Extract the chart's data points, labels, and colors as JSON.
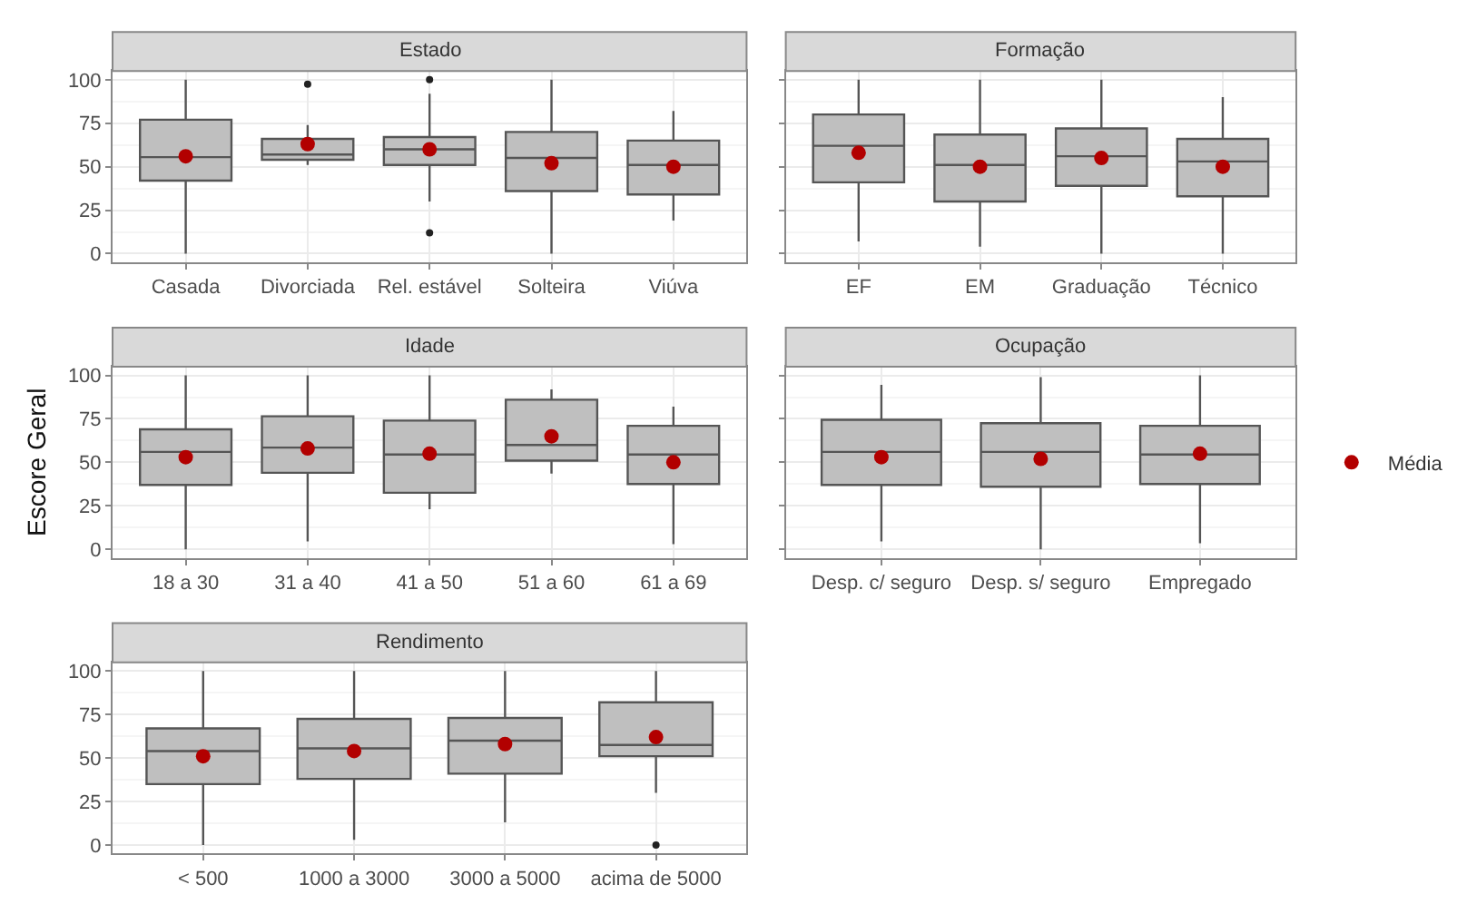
{
  "chart_data": [
    {
      "type": "box",
      "title": "Estado",
      "categories": [
        "Casada",
        "Divorciada",
        "Rel. estável",
        "Solteira",
        "Viúva"
      ],
      "ylim": [
        -5,
        105
      ],
      "yticks": [
        0,
        25,
        50,
        75,
        100
      ],
      "grid": true,
      "series": [
        {
          "color": "#bfbfbf",
          "boxes": [
            {
              "low": 0,
              "q1": 42,
              "median": 55.5,
              "q3": 77,
              "high": 100
            },
            {
              "low": 51,
              "q1": 54,
              "median": 57,
              "q3": 66,
              "high": 74,
              "outliers": [
                97.5
              ]
            },
            {
              "low": 30,
              "q1": 51,
              "median": 60,
              "q3": 67,
              "high": 92,
              "outliers": [
                100,
                12
              ]
            },
            {
              "low": 0,
              "q1": 36,
              "median": 55,
              "q3": 70,
              "high": 100
            },
            {
              "low": 19,
              "q1": 34,
              "median": 51,
              "q3": 65,
              "high": 82
            }
          ]
        },
        {
          "type": "scatter",
          "color": "#b20000",
          "x": [
            "Casada",
            "Divorciada",
            "Rel. estável",
            "Solteira",
            "Viúva"
          ],
          "values": [
            56,
            63,
            60,
            52,
            50
          ]
        }
      ]
    },
    {
      "type": "box",
      "title": "Formação",
      "categories": [
        "EF",
        "EM",
        "Graduação",
        "Técnico"
      ],
      "ylim": [
        -5,
        105
      ],
      "yticks": [
        0,
        25,
        50,
        75,
        100
      ],
      "grid": true,
      "tick_labels": "x",
      "series": [
        {
          "color": "#bfbfbf",
          "boxes": [
            {
              "low": 7,
              "q1": 41,
              "median": 62,
              "q3": 80,
              "high": 100
            },
            {
              "low": 4,
              "q1": 30,
              "median": 51,
              "q3": 68.5,
              "high": 100
            },
            {
              "low": 0,
              "q1": 39,
              "median": 56,
              "q3": 72,
              "high": 100
            },
            {
              "low": 0,
              "q1": 33,
              "median": 53,
              "q3": 66,
              "high": 90
            }
          ]
        },
        {
          "type": "scatter",
          "color": "#b20000",
          "x": [
            "EF",
            "EM",
            "Graduação",
            "Técnico"
          ],
          "values": [
            58,
            50,
            55,
            50
          ]
        }
      ]
    },
    {
      "type": "box",
      "title": "Idade",
      "ylabel": "Escore Geral",
      "categories": [
        "18 a 30",
        "31 a 40",
        "41 a 50",
        "51 a 60",
        "61 a 69"
      ],
      "ylim": [
        -5,
        105
      ],
      "yticks": [
        0,
        25,
        50,
        75,
        100
      ],
      "grid": true,
      "series": [
        {
          "color": "#bfbfbf",
          "boxes": [
            {
              "low": 0,
              "q1": 37,
              "median": 56,
              "q3": 69,
              "high": 100
            },
            {
              "low": 4.5,
              "q1": 44,
              "median": 58.5,
              "q3": 76.5,
              "high": 100
            },
            {
              "low": 23,
              "q1": 32.5,
              "median": 54.5,
              "q3": 74,
              "high": 100
            },
            {
              "low": 43.5,
              "q1": 51,
              "median": 60,
              "q3": 86,
              "high": 92
            },
            {
              "low": 3,
              "q1": 37.5,
              "median": 54.5,
              "q3": 71,
              "high": 82
            }
          ]
        },
        {
          "type": "scatter",
          "color": "#b20000",
          "x": [
            "18 a 30",
            "31 a 40",
            "41 a 50",
            "51 a 60",
            "61 a 69"
          ],
          "values": [
            53,
            58,
            55,
            65,
            50
          ]
        }
      ]
    },
    {
      "type": "box",
      "title": "Ocupação",
      "categories": [
        "Desp. c/ seguro",
        "Desp. s/ seguro",
        "Empregado"
      ],
      "ylim": [
        -5,
        105
      ],
      "yticks": [
        0,
        25,
        50,
        75,
        100
      ],
      "grid": true,
      "tick_labels": "x",
      "legend": "right",
      "series": [
        {
          "color": "#bfbfbf",
          "boxes": [
            {
              "low": 4.5,
              "q1": 37,
              "median": 56,
              "q3": 74.5,
              "high": 94.5
            },
            {
              "low": 0,
              "q1": 36,
              "median": 56,
              "q3": 72.5,
              "high": 99
            },
            {
              "low": 3.5,
              "q1": 37.5,
              "median": 54.5,
              "q3": 71,
              "high": 100
            }
          ]
        },
        {
          "type": "scatter",
          "name": "Média",
          "color": "#b20000",
          "x": [
            "Desp. c/ seguro",
            "Desp. s/ seguro",
            "Empregado"
          ],
          "values": [
            53,
            52,
            55
          ]
        }
      ]
    },
    {
      "type": "box",
      "title": "Rendimento",
      "categories": [
        "< 500",
        "1000 a 3000",
        "3000 a 5000",
        "acima de 5000"
      ],
      "ylim": [
        -5,
        105
      ],
      "yticks": [
        0,
        25,
        50,
        75,
        100
      ],
      "grid": true,
      "series": [
        {
          "color": "#bfbfbf",
          "boxes": [
            {
              "low": 0,
              "q1": 35,
              "median": 54,
              "q3": 67,
              "high": 100
            },
            {
              "low": 3,
              "q1": 38,
              "median": 55.5,
              "q3": 72.5,
              "high": 100
            },
            {
              "low": 13,
              "q1": 41,
              "median": 60,
              "q3": 73,
              "high": 100
            },
            {
              "low": 30,
              "q1": 51,
              "median": 57.5,
              "q3": 82,
              "high": 100,
              "outliers": [
                0
              ]
            }
          ]
        },
        {
          "type": "scatter",
          "color": "#b20000",
          "x": [
            "< 500",
            "1000 a 3000",
            "3000 a 5000",
            "acima de 5000"
          ],
          "values": [
            51,
            54,
            58,
            62
          ]
        }
      ]
    }
  ]
}
